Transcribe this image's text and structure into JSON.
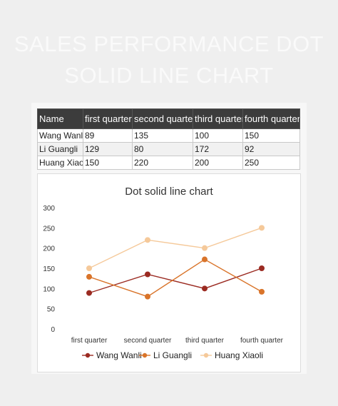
{
  "banner": {
    "line1": "SALES PERFORMANCE DOT",
    "line2": "SOLID LINE CHART"
  },
  "table": {
    "headers": [
      "Name",
      "first quarter",
      "second quarter",
      "third quarter",
      "fourth quarter"
    ],
    "rows": [
      [
        "Wang Wanli",
        "89",
        "135",
        "100",
        "150"
      ],
      [
        "Li Guangli",
        "129",
        "80",
        "172",
        "92"
      ],
      [
        "Huang Xiaoli",
        "150",
        "220",
        "200",
        "250"
      ]
    ]
  },
  "chart_data": {
    "type": "line",
    "title": "Dot solid line chart",
    "categories": [
      "first quarter",
      "second quarter",
      "third quarter",
      "fourth quarter"
    ],
    "series": [
      {
        "name": "Wang Wanli",
        "values": [
          89,
          135,
          100,
          150
        ],
        "color": "#9b2b22"
      },
      {
        "name": "Li Guangli",
        "values": [
          129,
          80,
          172,
          92
        ],
        "color": "#d9742a"
      },
      {
        "name": "Huang Xiaoli",
        "values": [
          150,
          220,
          200,
          250
        ],
        "color": "#f5c99a"
      }
    ],
    "ylim": [
      0,
      300
    ],
    "yticks": [
      "0",
      "50",
      "100",
      "150",
      "200",
      "250",
      "300"
    ],
    "grid": false,
    "legend": "bottom"
  }
}
